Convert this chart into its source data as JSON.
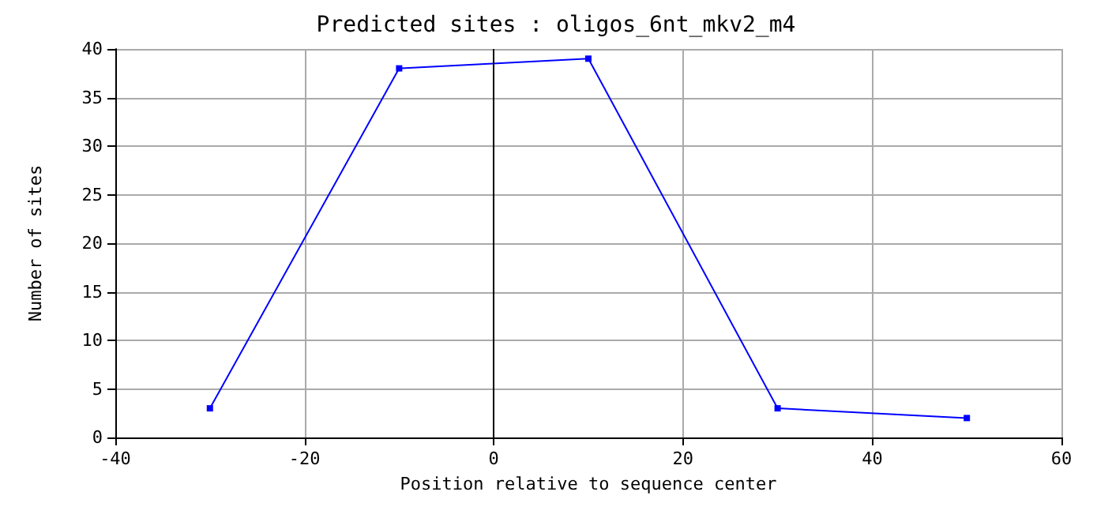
{
  "chart_data": {
    "type": "line",
    "title": "Predicted sites : oligos_6nt_mkv2_m4",
    "xlabel": "Position relative to sequence center",
    "ylabel": "Number of sites",
    "x": [
      -30,
      -10,
      10,
      30,
      50
    ],
    "series": [
      {
        "color": "#0000ff",
        "values": [
          3,
          38,
          39,
          3,
          2
        ]
      }
    ],
    "xlim": [
      -40,
      60
    ],
    "xticks": [
      -40,
      -20,
      0,
      20,
      40,
      60
    ],
    "ylim": [
      0,
      40
    ],
    "yticks": [
      0,
      5,
      10,
      15,
      20,
      25,
      30,
      35,
      40
    ],
    "ref_lines": [
      {
        "axis": "x",
        "value": 0,
        "color": "#000000"
      }
    ],
    "grid": true,
    "marker": "square",
    "line_style": "solid"
  }
}
